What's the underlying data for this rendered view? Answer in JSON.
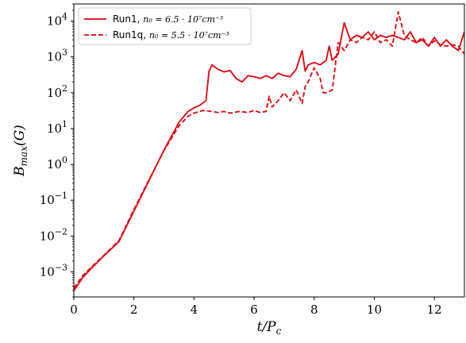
{
  "chart_data": {
    "type": "line",
    "xlabel": "t/P_c",
    "ylabel": "B_max(G)",
    "xlim": [
      0,
      13
    ],
    "ylim": [
      0.0002,
      30000
    ],
    "yscale": "log",
    "x_ticks": [
      0,
      2,
      4,
      6,
      8,
      10,
      12
    ],
    "y_ticks": [
      {
        "exp": -3,
        "label": "10",
        "sup": "−3"
      },
      {
        "exp": -2,
        "label": "10",
        "sup": "−2"
      },
      {
        "exp": -1,
        "label": "10",
        "sup": "−1"
      },
      {
        "exp": 0,
        "label": "10",
        "sup": "0"
      },
      {
        "exp": 1,
        "label": "10",
        "sup": "1"
      },
      {
        "exp": 2,
        "label": "10",
        "sup": "2"
      },
      {
        "exp": 3,
        "label": "10",
        "sup": "3"
      },
      {
        "exp": 4,
        "label": "10",
        "sup": "4"
      }
    ],
    "legend_position": "top-left",
    "color": "#e8000b",
    "series": [
      {
        "name": "Run1",
        "label_math": "n₀ = 6.5 · 10⁷cm⁻³",
        "style": "solid",
        "x": [
          0.0,
          0.3,
          0.6,
          1.0,
          1.5,
          2.0,
          2.5,
          3.0,
          3.5,
          3.8,
          4.0,
          4.2,
          4.4,
          4.5,
          4.6,
          4.8,
          5.0,
          5.2,
          5.4,
          5.6,
          5.8,
          6.0,
          6.2,
          6.4,
          6.6,
          6.8,
          7.0,
          7.2,
          7.4,
          7.6,
          7.7,
          7.8,
          8.0,
          8.2,
          8.4,
          8.5,
          8.6,
          8.8,
          9.0,
          9.2,
          9.4,
          9.6,
          9.8,
          10.0,
          10.2,
          10.4,
          10.6,
          10.8,
          11.0,
          11.2,
          11.4,
          11.6,
          11.8,
          12.0,
          12.2,
          12.4,
          12.6,
          12.8,
          13.0
        ],
        "y": [
          0.0003,
          0.0007,
          0.0013,
          0.0028,
          0.007,
          0.05,
          0.35,
          2.5,
          15,
          30,
          38,
          45,
          60,
          400,
          600,
          450,
          380,
          420,
          250,
          200,
          300,
          280,
          250,
          300,
          250,
          350,
          300,
          280,
          450,
          1500,
          400,
          600,
          700,
          600,
          800,
          2000,
          800,
          1200,
          9000,
          3000,
          4000,
          3500,
          5000,
          3000,
          4000,
          3500,
          4000,
          3500,
          3000,
          5000,
          2500,
          3000,
          2000,
          3500,
          2000,
          3000,
          2000,
          1500,
          5000
        ]
      },
      {
        "name": "Run1q",
        "label_math": "n₀ = 5.5 · 10⁷cm⁻³",
        "style": "dashed",
        "x": [
          0.0,
          0.3,
          0.6,
          1.0,
          1.5,
          2.0,
          2.5,
          3.0,
          3.5,
          3.8,
          4.0,
          4.3,
          4.6,
          4.8,
          5.0,
          5.2,
          5.5,
          5.8,
          6.0,
          6.2,
          6.4,
          6.5,
          6.6,
          6.8,
          7.0,
          7.2,
          7.4,
          7.6,
          7.7,
          7.8,
          8.0,
          8.2,
          8.3,
          8.4,
          8.6,
          8.8,
          9.0,
          9.2,
          9.4,
          9.6,
          9.8,
          10.0,
          10.2,
          10.4,
          10.6,
          10.8,
          11.0,
          11.2,
          11.4,
          11.6,
          11.8,
          12.0,
          12.2,
          12.4,
          12.6,
          12.8,
          13.0
        ],
        "y": [
          0.00035,
          0.0008,
          0.0014,
          0.0029,
          0.0075,
          0.055,
          0.37,
          2.4,
          12,
          22,
          27,
          32,
          30,
          28,
          30,
          27,
          30,
          28,
          32,
          28,
          30,
          80,
          40,
          60,
          100,
          60,
          120,
          50,
          150,
          200,
          500,
          250,
          100,
          100,
          120,
          2500,
          1500,
          3000,
          2500,
          3500,
          3000,
          5000,
          2500,
          3000,
          2000,
          18000,
          4000,
          3000,
          2500,
          3500,
          2000,
          2800,
          2200,
          2000,
          2200,
          2000,
          1200
        ]
      }
    ]
  }
}
